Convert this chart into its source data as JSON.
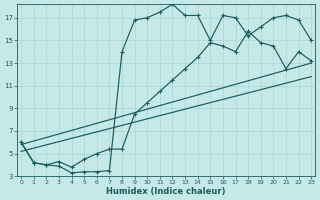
{
  "xlabel": "Humidex (Indice chaleur)",
  "bg_color": "#c5e8e8",
  "grid_color": "#aad4d4",
  "line_color": "#1a5c5a",
  "xlim_min": -0.3,
  "xlim_max": 23.3,
  "ylim_min": 3,
  "ylim_max": 18.2,
  "xticks": [
    0,
    1,
    2,
    3,
    4,
    5,
    6,
    7,
    8,
    9,
    10,
    11,
    12,
    13,
    14,
    15,
    16,
    17,
    18,
    19,
    20,
    21,
    22,
    23
  ],
  "yticks": [
    3,
    5,
    7,
    9,
    11,
    13,
    15,
    17
  ],
  "curve_jagged_x": [
    0,
    1,
    2,
    3,
    4,
    5,
    6,
    7,
    8,
    9,
    10,
    11,
    12,
    13,
    14,
    15,
    16,
    17,
    18,
    19,
    20,
    21,
    22,
    23
  ],
  "curve_jagged_y": [
    6.0,
    4.2,
    4.0,
    3.9,
    3.3,
    3.4,
    3.4,
    3.5,
    14.0,
    16.8,
    17.0,
    17.5,
    18.2,
    17.2,
    17.2,
    15.0,
    17.2,
    17.0,
    15.4,
    16.2,
    17.0,
    17.2,
    16.8,
    15.0
  ],
  "curve_loop_x": [
    0,
    1,
    2,
    3,
    4,
    5,
    6,
    7,
    8,
    9,
    10,
    11,
    12,
    13,
    14,
    15,
    16,
    17,
    18,
    19,
    20,
    21,
    22,
    23
  ],
  "curve_loop_y": [
    6.0,
    4.2,
    4.0,
    4.3,
    3.8,
    4.5,
    5.0,
    5.4,
    5.4,
    8.5,
    9.5,
    10.5,
    11.5,
    12.5,
    13.5,
    14.8,
    14.5,
    14.0,
    15.8,
    14.8,
    14.5,
    12.5,
    14.0,
    13.2
  ],
  "line1_x": [
    0,
    23
  ],
  "line1_y": [
    5.8,
    13.0
  ],
  "line2_x": [
    0,
    23
  ],
  "line2_y": [
    5.2,
    11.8
  ]
}
